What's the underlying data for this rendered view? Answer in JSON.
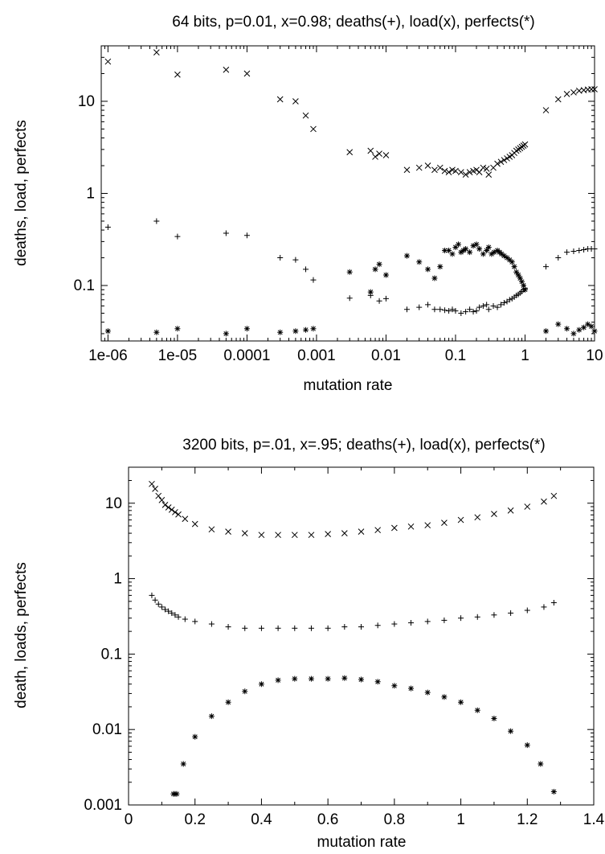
{
  "chart_data": [
    {
      "type": "scatter",
      "title": "64 bits, p=0.01, x=0.98; deaths(+), load(x), perfects(*)",
      "xlabel": "mutation rate",
      "ylabel": "deaths, load, perfects",
      "xscale": "log",
      "yscale": "log",
      "xlim": [
        8e-07,
        10
      ],
      "ylim": [
        0.025,
        40
      ],
      "grid": false,
      "legend": "none",
      "x_ticks": [
        1e-06,
        1e-05,
        0.0001,
        0.001,
        0.01,
        0.1,
        1,
        10
      ],
      "x_tick_labels": [
        "1e-06",
        "1e-05",
        "0.0001",
        "0.001",
        "0.01",
        "0.1",
        "1",
        "10"
      ],
      "y_ticks": [
        0.1,
        1,
        10
      ],
      "y_tick_labels": [
        "0.1",
        "1",
        "10"
      ],
      "series": [
        {
          "marker": "plus",
          "points": [
            [
              1e-06,
              0.43
            ],
            [
              5e-06,
              0.5
            ],
            [
              1e-05,
              0.34
            ],
            [
              5e-05,
              0.37
            ],
            [
              0.0001,
              0.35
            ],
            [
              0.0003,
              0.2
            ],
            [
              0.0005,
              0.19
            ],
            [
              0.0007,
              0.15
            ],
            [
              0.0009,
              0.115
            ],
            [
              0.003,
              0.073
            ],
            [
              0.006,
              0.078
            ],
            [
              0.008,
              0.068
            ],
            [
              0.01,
              0.072
            ],
            [
              0.02,
              0.055
            ],
            [
              0.03,
              0.058
            ],
            [
              0.04,
              0.062
            ],
            [
              0.05,
              0.055
            ],
            [
              0.06,
              0.055
            ],
            [
              0.07,
              0.054
            ],
            [
              0.08,
              0.053
            ],
            [
              0.09,
              0.055
            ],
            [
              0.1,
              0.053
            ],
            [
              0.12,
              0.05
            ],
            [
              0.14,
              0.052
            ],
            [
              0.16,
              0.055
            ],
            [
              0.18,
              0.052
            ],
            [
              0.2,
              0.053
            ],
            [
              0.22,
              0.058
            ],
            [
              0.25,
              0.06
            ],
            [
              0.28,
              0.062
            ],
            [
              0.3,
              0.055
            ],
            [
              0.35,
              0.06
            ],
            [
              0.4,
              0.058
            ],
            [
              0.45,
              0.062
            ],
            [
              0.5,
              0.065
            ],
            [
              0.55,
              0.067
            ],
            [
              0.6,
              0.07
            ],
            [
              0.65,
              0.072
            ],
            [
              0.7,
              0.075
            ],
            [
              0.75,
              0.078
            ],
            [
              0.8,
              0.08
            ],
            [
              0.85,
              0.083
            ],
            [
              0.9,
              0.086
            ],
            [
              0.95,
              0.09
            ],
            [
              1.0,
              0.093
            ],
            [
              2,
              0.16
            ],
            [
              3,
              0.2
            ],
            [
              4,
              0.23
            ],
            [
              5,
              0.235
            ],
            [
              6,
              0.24
            ],
            [
              7,
              0.245
            ],
            [
              8,
              0.25
            ],
            [
              9,
              0.25
            ],
            [
              10,
              0.25
            ]
          ]
        },
        {
          "marker": "cross",
          "points": [
            [
              1e-06,
              27
            ],
            [
              5e-06,
              34
            ],
            [
              1e-05,
              19.5
            ],
            [
              5e-05,
              22
            ],
            [
              0.0001,
              20
            ],
            [
              0.0003,
              10.5
            ],
            [
              0.0005,
              10
            ],
            [
              0.0007,
              7
            ],
            [
              0.0009,
              5
            ],
            [
              0.003,
              2.8
            ],
            [
              0.006,
              2.9
            ],
            [
              0.007,
              2.5
            ],
            [
              0.008,
              2.7
            ],
            [
              0.01,
              2.6
            ],
            [
              0.02,
              1.8
            ],
            [
              0.03,
              1.9
            ],
            [
              0.04,
              2.0
            ],
            [
              0.05,
              1.8
            ],
            [
              0.06,
              1.9
            ],
            [
              0.07,
              1.75
            ],
            [
              0.08,
              1.7
            ],
            [
              0.09,
              1.8
            ],
            [
              0.1,
              1.75
            ],
            [
              0.12,
              1.7
            ],
            [
              0.14,
              1.6
            ],
            [
              0.16,
              1.7
            ],
            [
              0.18,
              1.75
            ],
            [
              0.2,
              1.8
            ],
            [
              0.22,
              1.7
            ],
            [
              0.25,
              1.9
            ],
            [
              0.28,
              1.85
            ],
            [
              0.3,
              1.6
            ],
            [
              0.35,
              1.9
            ],
            [
              0.4,
              2.1
            ],
            [
              0.45,
              2.2
            ],
            [
              0.5,
              2.3
            ],
            [
              0.55,
              2.4
            ],
            [
              0.6,
              2.5
            ],
            [
              0.65,
              2.6
            ],
            [
              0.7,
              2.75
            ],
            [
              0.75,
              2.9
            ],
            [
              0.8,
              3.0
            ],
            [
              0.85,
              3.1
            ],
            [
              0.9,
              3.2
            ],
            [
              0.95,
              3.3
            ],
            [
              1.0,
              3.4
            ],
            [
              2,
              8
            ],
            [
              3,
              10.5
            ],
            [
              4,
              12
            ],
            [
              5,
              12.5
            ],
            [
              6,
              13
            ],
            [
              7,
              13.2
            ],
            [
              8,
              13.4
            ],
            [
              9,
              13.5
            ],
            [
              10,
              13.5
            ]
          ]
        },
        {
          "marker": "star",
          "points": [
            [
              1e-06,
              0.032
            ],
            [
              5e-06,
              0.031
            ],
            [
              1e-05,
              0.034
            ],
            [
              5e-05,
              0.03
            ],
            [
              0.0001,
              0.034
            ],
            [
              0.0003,
              0.031
            ],
            [
              0.0005,
              0.032
            ],
            [
              0.0007,
              0.033
            ],
            [
              0.0009,
              0.034
            ],
            [
              0.003,
              0.14
            ],
            [
              0.006,
              0.085
            ],
            [
              0.007,
              0.15
            ],
            [
              0.008,
              0.17
            ],
            [
              0.01,
              0.13
            ],
            [
              0.02,
              0.21
            ],
            [
              0.03,
              0.18
            ],
            [
              0.04,
              0.15
            ],
            [
              0.05,
              0.12
            ],
            [
              0.06,
              0.16
            ],
            [
              0.07,
              0.24
            ],
            [
              0.08,
              0.24
            ],
            [
              0.09,
              0.22
            ],
            [
              0.1,
              0.26
            ],
            [
              0.11,
              0.28
            ],
            [
              0.12,
              0.23
            ],
            [
              0.13,
              0.24
            ],
            [
              0.14,
              0.25
            ],
            [
              0.16,
              0.23
            ],
            [
              0.18,
              0.27
            ],
            [
              0.2,
              0.28
            ],
            [
              0.22,
              0.25
            ],
            [
              0.25,
              0.22
            ],
            [
              0.28,
              0.24
            ],
            [
              0.3,
              0.26
            ],
            [
              0.33,
              0.22
            ],
            [
              0.36,
              0.23
            ],
            [
              0.4,
              0.24
            ],
            [
              0.43,
              0.23
            ],
            [
              0.46,
              0.22
            ],
            [
              0.5,
              0.21
            ],
            [
              0.55,
              0.2
            ],
            [
              0.6,
              0.19
            ],
            [
              0.65,
              0.18
            ],
            [
              0.7,
              0.16
            ],
            [
              0.75,
              0.14
            ],
            [
              0.8,
              0.13
            ],
            [
              0.85,
              0.12
            ],
            [
              0.9,
              0.11
            ],
            [
              0.95,
              0.1
            ],
            [
              1.0,
              0.09
            ],
            [
              2,
              0.032
            ],
            [
              3,
              0.038
            ],
            [
              4,
              0.034
            ],
            [
              5,
              0.03
            ],
            [
              6,
              0.033
            ],
            [
              7,
              0.035
            ],
            [
              8,
              0.038
            ],
            [
              9,
              0.036
            ],
            [
              10,
              0.032
            ]
          ]
        }
      ]
    },
    {
      "type": "scatter",
      "title": "3200 bits, p=.01, x=.95; deaths(+), load(x), perfects(*)",
      "xlabel": "mutation rate",
      "ylabel": "death, loads, perfects",
      "xscale": "linear",
      "yscale": "log",
      "xlim": [
        0,
        1.4
      ],
      "ylim": [
        0.001,
        30
      ],
      "grid": false,
      "legend": "none",
      "x_ticks": [
        0,
        0.2,
        0.4,
        0.6,
        0.8,
        1,
        1.2,
        1.4
      ],
      "x_tick_labels": [
        "0",
        "0.2",
        "0.4",
        "0.6",
        "0.8",
        "1",
        "1.2",
        "1.4"
      ],
      "y_ticks": [
        0.001,
        0.01,
        0.1,
        1,
        10
      ],
      "y_tick_labels": [
        "0.001",
        "0.01",
        "0.1",
        "1",
        "10"
      ],
      "series": [
        {
          "marker": "plus",
          "points": [
            [
              0.07,
              0.6
            ],
            [
              0.08,
              0.52
            ],
            [
              0.09,
              0.46
            ],
            [
              0.1,
              0.42
            ],
            [
              0.11,
              0.39
            ],
            [
              0.12,
              0.37
            ],
            [
              0.13,
              0.35
            ],
            [
              0.14,
              0.33
            ],
            [
              0.15,
              0.31
            ],
            [
              0.17,
              0.29
            ],
            [
              0.2,
              0.27
            ],
            [
              0.25,
              0.25
            ],
            [
              0.3,
              0.23
            ],
            [
              0.35,
              0.22
            ],
            [
              0.4,
              0.22
            ],
            [
              0.45,
              0.22
            ],
            [
              0.5,
              0.22
            ],
            [
              0.55,
              0.22
            ],
            [
              0.6,
              0.22
            ],
            [
              0.65,
              0.23
            ],
            [
              0.7,
              0.23
            ],
            [
              0.75,
              0.24
            ],
            [
              0.8,
              0.25
            ],
            [
              0.85,
              0.26
            ],
            [
              0.9,
              0.27
            ],
            [
              0.95,
              0.28
            ],
            [
              1.0,
              0.3
            ],
            [
              1.05,
              0.31
            ],
            [
              1.1,
              0.33
            ],
            [
              1.15,
              0.35
            ],
            [
              1.2,
              0.38
            ],
            [
              1.25,
              0.42
            ],
            [
              1.28,
              0.48
            ]
          ]
        },
        {
          "marker": "cross",
          "points": [
            [
              0.07,
              18
            ],
            [
              0.08,
              15.5
            ],
            [
              0.09,
              12.5
            ],
            [
              0.1,
              11
            ],
            [
              0.11,
              9.5
            ],
            [
              0.12,
              8.8
            ],
            [
              0.13,
              8.2
            ],
            [
              0.14,
              7.6
            ],
            [
              0.15,
              7.1
            ],
            [
              0.17,
              6.2
            ],
            [
              0.2,
              5.3
            ],
            [
              0.25,
              4.5
            ],
            [
              0.3,
              4.2
            ],
            [
              0.35,
              4.0
            ],
            [
              0.4,
              3.8
            ],
            [
              0.45,
              3.8
            ],
            [
              0.5,
              3.8
            ],
            [
              0.55,
              3.8
            ],
            [
              0.6,
              3.9
            ],
            [
              0.65,
              4.0
            ],
            [
              0.7,
              4.2
            ],
            [
              0.75,
              4.4
            ],
            [
              0.8,
              4.7
            ],
            [
              0.85,
              4.9
            ],
            [
              0.9,
              5.1
            ],
            [
              0.95,
              5.5
            ],
            [
              1.0,
              6.0
            ],
            [
              1.05,
              6.5
            ],
            [
              1.1,
              7.2
            ],
            [
              1.15,
              8.0
            ],
            [
              1.2,
              9.0
            ],
            [
              1.25,
              10.5
            ],
            [
              1.28,
              12.5
            ]
          ]
        },
        {
          "marker": "star",
          "points": [
            [
              0.135,
              0.0014
            ],
            [
              0.14,
              0.0014
            ],
            [
              0.145,
              0.0014
            ],
            [
              0.165,
              0.0035
            ],
            [
              0.2,
              0.008
            ],
            [
              0.25,
              0.015
            ],
            [
              0.3,
              0.023
            ],
            [
              0.35,
              0.032
            ],
            [
              0.4,
              0.04
            ],
            [
              0.45,
              0.045
            ],
            [
              0.5,
              0.047
            ],
            [
              0.55,
              0.047
            ],
            [
              0.6,
              0.047
            ],
            [
              0.65,
              0.048
            ],
            [
              0.7,
              0.046
            ],
            [
              0.75,
              0.043
            ],
            [
              0.8,
              0.038
            ],
            [
              0.85,
              0.035
            ],
            [
              0.9,
              0.031
            ],
            [
              0.95,
              0.027
            ],
            [
              1.0,
              0.023
            ],
            [
              1.05,
              0.018
            ],
            [
              1.1,
              0.014
            ],
            [
              1.15,
              0.0095
            ],
            [
              1.2,
              0.0062
            ],
            [
              1.24,
              0.0035
            ],
            [
              1.28,
              0.0015
            ]
          ]
        }
      ]
    }
  ]
}
